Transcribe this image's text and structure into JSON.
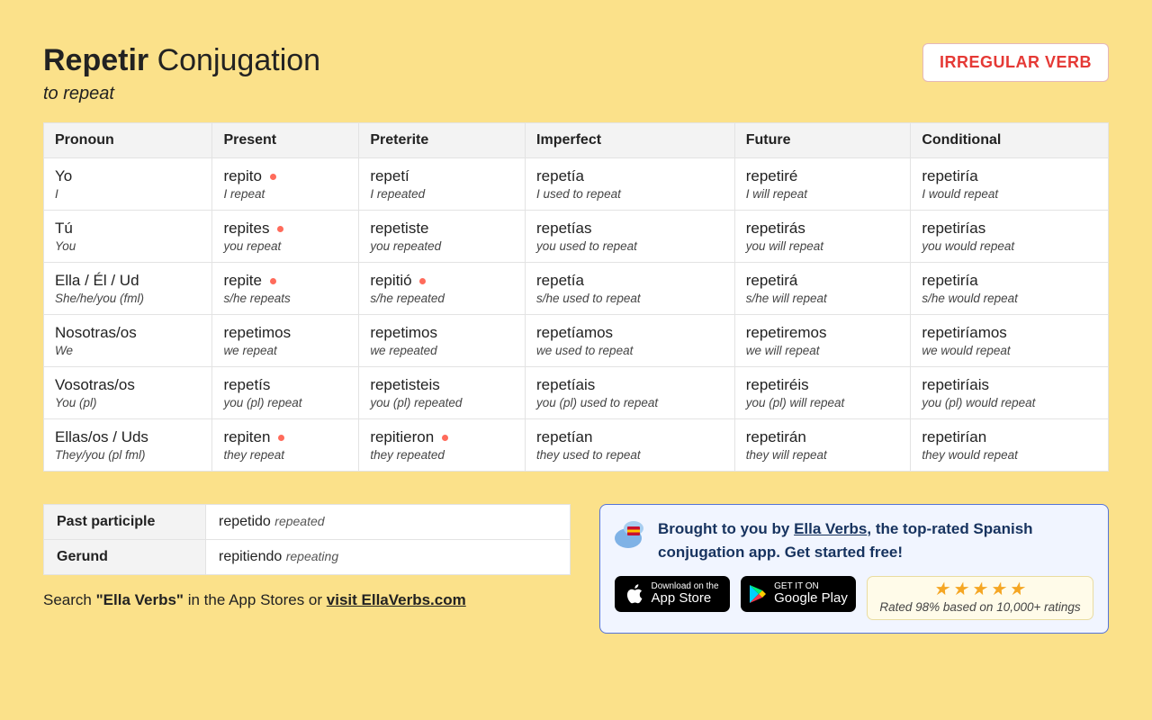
{
  "colors": {
    "page_bg": "#fbe18a",
    "card_bg": "#ffffff",
    "header_bg": "#f3f3f3",
    "border": "#e3e3e3",
    "text": "#222222",
    "irregular_dot": "#ff6b5b",
    "badge_text": "#e53935",
    "badge_border": "#e5b8b8",
    "promo_bg": "#f1f5ff",
    "promo_border": "#5574d8",
    "promo_text": "#17335f",
    "rating_bg": "#fffbe9",
    "rating_border": "#e9dca0",
    "star": "#f5a623"
  },
  "header": {
    "verb": "Repetir",
    "word_conjugation": "Conjugation",
    "translation": "to repeat",
    "badge": "IRREGULAR VERB"
  },
  "table": {
    "columns": [
      "Pronoun",
      "Present",
      "Preterite",
      "Imperfect",
      "Future",
      "Conditional"
    ],
    "rows": [
      {
        "pronoun": {
          "es": "Yo",
          "en": "I"
        },
        "cells": [
          {
            "es": "repito",
            "en": "I repeat",
            "irregular": true
          },
          {
            "es": "repetí",
            "en": "I repeated",
            "irregular": false
          },
          {
            "es": "repetía",
            "en": "I used to repeat",
            "irregular": false
          },
          {
            "es": "repetiré",
            "en": "I will repeat",
            "irregular": false
          },
          {
            "es": "repetiría",
            "en": "I would repeat",
            "irregular": false
          }
        ]
      },
      {
        "pronoun": {
          "es": "Tú",
          "en": "You"
        },
        "cells": [
          {
            "es": "repites",
            "en": "you repeat",
            "irregular": true
          },
          {
            "es": "repetiste",
            "en": "you repeated",
            "irregular": false
          },
          {
            "es": "repetías",
            "en": "you used to repeat",
            "irregular": false
          },
          {
            "es": "repetirás",
            "en": "you will repeat",
            "irregular": false
          },
          {
            "es": "repetirías",
            "en": "you would repeat",
            "irregular": false
          }
        ]
      },
      {
        "pronoun": {
          "es": "Ella / Él / Ud",
          "en": "She/he/you (fml)"
        },
        "cells": [
          {
            "es": "repite",
            "en": "s/he repeats",
            "irregular": true
          },
          {
            "es": "repitió",
            "en": "s/he repeated",
            "irregular": true
          },
          {
            "es": "repetía",
            "en": "s/he used to repeat",
            "irregular": false
          },
          {
            "es": "repetirá",
            "en": "s/he will repeat",
            "irregular": false
          },
          {
            "es": "repetiría",
            "en": "s/he would repeat",
            "irregular": false
          }
        ]
      },
      {
        "pronoun": {
          "es": "Nosotras/os",
          "en": "We"
        },
        "cells": [
          {
            "es": "repetimos",
            "en": "we repeat",
            "irregular": false
          },
          {
            "es": "repetimos",
            "en": "we repeated",
            "irregular": false
          },
          {
            "es": "repetíamos",
            "en": "we used to repeat",
            "irregular": false
          },
          {
            "es": "repetiremos",
            "en": "we will repeat",
            "irregular": false
          },
          {
            "es": "repetiríamos",
            "en": "we would repeat",
            "irregular": false
          }
        ]
      },
      {
        "pronoun": {
          "es": "Vosotras/os",
          "en": "You (pl)"
        },
        "cells": [
          {
            "es": "repetís",
            "en": "you (pl) repeat",
            "irregular": false
          },
          {
            "es": "repetisteis",
            "en": "you (pl) repeated",
            "irregular": false
          },
          {
            "es": "repetíais",
            "en": "you (pl) used to repeat",
            "irregular": false
          },
          {
            "es": "repetiréis",
            "en": "you (pl) will repeat",
            "irregular": false
          },
          {
            "es": "repetiríais",
            "en": "you (pl) would repeat",
            "irregular": false
          }
        ]
      },
      {
        "pronoun": {
          "es": "Ellas/os / Uds",
          "en": "They/you (pl fml)"
        },
        "cells": [
          {
            "es": "repiten",
            "en": "they repeat",
            "irregular": true
          },
          {
            "es": "repitieron",
            "en": "they repeated",
            "irregular": true
          },
          {
            "es": "repetían",
            "en": "they used to repeat",
            "irregular": false
          },
          {
            "es": "repetirán",
            "en": "they will repeat",
            "irregular": false
          },
          {
            "es": "repetirían",
            "en": "they would repeat",
            "irregular": false
          }
        ]
      }
    ]
  },
  "parts": {
    "past_participle": {
      "label": "Past participle",
      "es": "repetido",
      "en": "repeated"
    },
    "gerund": {
      "label": "Gerund",
      "es": "repitiendo",
      "en": "repeating"
    }
  },
  "search_note": {
    "prefix": "Search ",
    "bold": "\"Ella Verbs\"",
    "mid": " in the App Stores or ",
    "link": "visit EllaVerbs.com"
  },
  "promo": {
    "prefix": "Brought to you by ",
    "link": "Ella Verbs",
    "suffix": ", the top-rated Spanish conjugation app. Get started free!",
    "appstore": {
      "line1": "Download on the",
      "line2": "App Store"
    },
    "play": {
      "line1": "GET IT ON",
      "line2": "Google Play"
    },
    "rating_text": "Rated 98% based on 10,000+ ratings",
    "stars": 5
  }
}
